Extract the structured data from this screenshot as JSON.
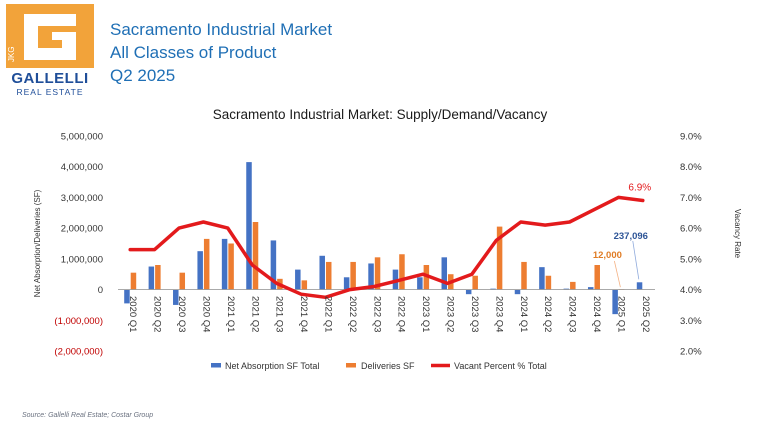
{
  "logo": {
    "mark_text": "JKG",
    "name": "GALLELLI",
    "sub": "REAL ESTATE",
    "brand_orange": "#f2a33a",
    "brand_blue": "#1f4e99"
  },
  "header": {
    "line1": "Sacramento Industrial Market",
    "line2": "All Classes of Product",
    "line3": "Q2 2025",
    "color": "#1f6fb5"
  },
  "source": "Source: Gallelli Real Estate; Costar Group",
  "chart_data": {
    "type": "bar",
    "title": "Sacramento Industrial Market: Supply/Demand/Vacancy",
    "ylabel": "Net Absorption/Deliveries (SF)",
    "y2label": "Vacancy Rate",
    "ylim": [
      -2000000,
      5000000
    ],
    "y2lim": [
      2.0,
      9.0
    ],
    "yticks": [
      "(2,000,000)",
      "(1,000,000)",
      "0",
      "1,000,000",
      "2,000,000",
      "3,000,000",
      "4,000,000",
      "5,000,000"
    ],
    "y2ticks": [
      "2.0%",
      "3.0%",
      "4.0%",
      "5.0%",
      "6.0%",
      "7.0%",
      "8.0%",
      "9.0%"
    ],
    "categories": [
      "2020 Q1",
      "2020 Q2",
      "2020 Q3",
      "2020 Q4",
      "2021 Q1",
      "2021 Q2",
      "2021 Q3",
      "2021 Q4",
      "2022 Q1",
      "2022 Q2",
      "2022 Q3",
      "2022 Q4",
      "2023 Q1",
      "2023 Q2",
      "2023 Q3",
      "2023 Q4",
      "2024 Q1",
      "2024 Q2",
      "2024 Q3",
      "2024 Q4",
      "2025 Q1",
      "2025 Q2"
    ],
    "series": [
      {
        "name": "Net Absorption SF Total",
        "type": "bar",
        "axis": "left",
        "color": "#4472c4",
        "values": [
          -450000,
          750000,
          -500000,
          1250000,
          1650000,
          4150000,
          1600000,
          650000,
          1100000,
          400000,
          850000,
          650000,
          400000,
          1050000,
          -150000,
          30000,
          -150000,
          730000,
          30000,
          80000,
          -800000,
          237096
        ]
      },
      {
        "name": "Deliveries SF",
        "type": "bar",
        "axis": "left",
        "color": "#ed7d31",
        "values": [
          550000,
          800000,
          550000,
          1650000,
          1500000,
          2200000,
          350000,
          300000,
          900000,
          900000,
          1050000,
          1150000,
          800000,
          500000,
          450000,
          2050000,
          900000,
          450000,
          250000,
          800000,
          12000,
          0
        ]
      },
      {
        "name": "Vacant Percent % Total",
        "type": "line",
        "axis": "right",
        "color": "#e31a1c",
        "values": [
          5.3,
          5.3,
          6.0,
          6.2,
          6.0,
          4.8,
          4.2,
          3.85,
          3.75,
          4.0,
          4.1,
          4.3,
          4.5,
          4.2,
          4.5,
          5.6,
          6.2,
          6.1,
          6.2,
          6.6,
          7.0,
          6.9
        ]
      }
    ],
    "annotations": [
      {
        "text": "6.9%",
        "series": 2,
        "index": 21,
        "color": "#e31a1c"
      },
      {
        "text": "237,096",
        "series": 0,
        "index": 21,
        "color": "#2e5597"
      },
      {
        "text": "12,000",
        "series": 1,
        "index": 20,
        "color": "#e07c24"
      }
    ],
    "legend": "bottom",
    "grid": false
  }
}
